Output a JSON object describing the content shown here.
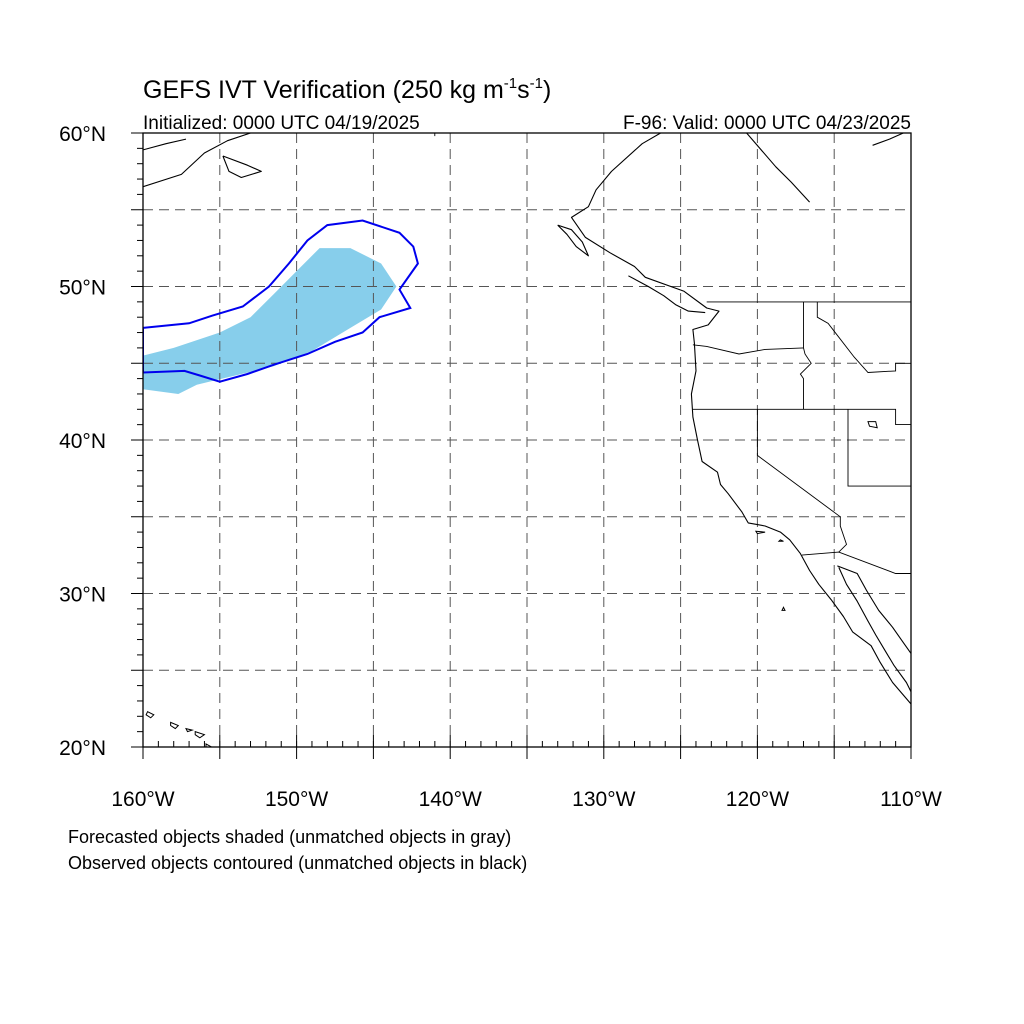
{
  "header": {
    "title_main": "GEFS IVT Verification (250 kg m",
    "title_sup1": "-1",
    "title_mid": "s",
    "title_sup2": "-1",
    "title_end": ")",
    "initialized": "Initialized: 0000 UTC 04/19/2025",
    "valid": "F-96: Valid: 0000 UTC 04/23/2025"
  },
  "map": {
    "lon_range": [
      -160,
      -110
    ],
    "lat_range": [
      20,
      60
    ],
    "y_tick_labels": [
      {
        "lat": 60,
        "label": "60°N"
      },
      {
        "lat": 50,
        "label": "50°N"
      },
      {
        "lat": 40,
        "label": "40°N"
      },
      {
        "lat": 30,
        "label": "30°N"
      },
      {
        "lat": 20,
        "label": "20°N"
      }
    ],
    "x_tick_labels": [
      {
        "lon": -160,
        "label": "160°W"
      },
      {
        "lon": -150,
        "label": "150°W"
      },
      {
        "lon": -140,
        "label": "140°W"
      },
      {
        "lon": -130,
        "label": "130°W"
      },
      {
        "lon": -120,
        "label": "120°W"
      },
      {
        "lon": -110,
        "label": "110°W"
      }
    ],
    "grid_interval_deg": 5,
    "grid_style": "dashed",
    "colors": {
      "forecast_fill": "#87ceeb",
      "observed_contour": "#0000ee",
      "coastline": "#000000",
      "grid": "#555555"
    },
    "forecast_object": [
      [
        -160,
        45.5
      ],
      [
        -158,
        46
      ],
      [
        -155,
        47
      ],
      [
        -153,
        48
      ],
      [
        -151.5,
        49.5
      ],
      [
        -150,
        51
      ],
      [
        -148.5,
        52.5
      ],
      [
        -146.5,
        52.5
      ],
      [
        -144.5,
        51.5
      ],
      [
        -143.5,
        50
      ],
      [
        -144.5,
        48.5
      ],
      [
        -146.5,
        47.3
      ],
      [
        -149,
        45.8
      ],
      [
        -151.5,
        44.8
      ],
      [
        -154,
        44.2
      ],
      [
        -156.5,
        43.6
      ],
      [
        -157.7,
        43
      ],
      [
        -160,
        43.3
      ]
    ],
    "observed_object": [
      [
        -160,
        47.3
      ],
      [
        -157,
        47.6
      ],
      [
        -155.5,
        48.1
      ],
      [
        -153.5,
        48.7
      ],
      [
        -151.8,
        50
      ],
      [
        -150.5,
        51.5
      ],
      [
        -149.3,
        53
      ],
      [
        -148,
        54
      ],
      [
        -145.7,
        54.3
      ],
      [
        -143.3,
        53.5
      ],
      [
        -142.4,
        52.6
      ],
      [
        -142.1,
        51.5
      ],
      [
        -143.3,
        49.8
      ],
      [
        -142.6,
        48.6
      ],
      [
        -144.6,
        48
      ],
      [
        -145.7,
        47
      ],
      [
        -147.5,
        46.4
      ],
      [
        -149.3,
        45.6
      ],
      [
        -151.5,
        44.9
      ],
      [
        -153.2,
        44.3
      ],
      [
        -155,
        43.8
      ],
      [
        -156.3,
        44.2
      ],
      [
        -157.3,
        44.5
      ],
      [
        -160,
        44.4
      ]
    ],
    "coastlines": [
      [
        [
          -126.3,
          60
        ],
        [
          -127.5,
          59.3
        ],
        [
          -129.5,
          57.5
        ],
        [
          -130.5,
          56.3
        ],
        [
          -131,
          55.2
        ],
        [
          -132.1,
          54.5
        ],
        [
          -131.2,
          53.2
        ],
        [
          -129.6,
          52.2
        ],
        [
          -128,
          51.3
        ],
        [
          -127.3,
          50.6
        ],
        [
          -124.8,
          49.7
        ],
        [
          -123.3,
          48.6
        ],
        [
          -122.5,
          48.4
        ],
        [
          -123.2,
          47.5
        ],
        [
          -124.2,
          47.2
        ],
        [
          -124.1,
          46.3
        ],
        [
          -124,
          44.5
        ],
        [
          -124.3,
          43
        ],
        [
          -124.2,
          41.5
        ],
        [
          -123.9,
          40
        ],
        [
          -123.6,
          38.6
        ],
        [
          -122.6,
          37.9
        ],
        [
          -122.4,
          37.1
        ],
        [
          -121.9,
          36.5
        ],
        [
          -121,
          35.3
        ],
        [
          -120.6,
          34.6
        ],
        [
          -119.5,
          34.4
        ],
        [
          -118.5,
          34
        ],
        [
          -117.9,
          33.5
        ],
        [
          -117.2,
          32.6
        ],
        [
          -116.6,
          31.5
        ],
        [
          -116,
          30.6
        ],
        [
          -115.2,
          29.6
        ],
        [
          -114.4,
          28.5
        ],
        [
          -113.8,
          27.5
        ],
        [
          -112.6,
          26.6
        ],
        [
          -112,
          25.5
        ],
        [
          -111.2,
          24.2
        ],
        [
          -110,
          22.8
        ]
      ],
      [
        [
          -114.7,
          31.7
        ],
        [
          -114.2,
          30.6
        ],
        [
          -113.5,
          29.5
        ],
        [
          -112.8,
          28.2
        ],
        [
          -112.3,
          27.3
        ],
        [
          -111.7,
          26.3
        ],
        [
          -111.1,
          25.3
        ],
        [
          -110.3,
          24.2
        ],
        [
          -110,
          23.6
        ]
      ],
      [
        [
          -114.8,
          31.8
        ],
        [
          -113.5,
          31.3
        ],
        [
          -112.9,
          30.2
        ],
        [
          -112.1,
          28.9
        ],
        [
          -111.2,
          27.8
        ],
        [
          -110.5,
          26.8
        ],
        [
          -110,
          26.1
        ]
      ],
      [
        [
          -128.4,
          50.7
        ],
        [
          -127.1,
          50
        ],
        [
          -126.1,
          49.4
        ],
        [
          -125.3,
          48.8
        ],
        [
          -124.5,
          48.4
        ],
        [
          -123.4,
          48.3
        ]
      ],
      [
        [
          -133,
          54
        ],
        [
          -132.4,
          53.4
        ],
        [
          -131.8,
          52.6
        ],
        [
          -131,
          52
        ],
        [
          -131.4,
          52.9
        ],
        [
          -132.1,
          53.7
        ],
        [
          -133,
          54
        ]
      ],
      [
        [
          -160,
          56.5
        ],
        [
          -157.5,
          57.3
        ],
        [
          -156,
          58.7
        ],
        [
          -154.5,
          59.5
        ],
        [
          -153,
          60
        ]
      ],
      [
        [
          -160,
          58.9
        ],
        [
          -158.5,
          59.3
        ],
        [
          -157.2,
          59.6
        ]
      ],
      [
        [
          -154.8,
          58.5
        ],
        [
          -153.2,
          57.9
        ],
        [
          -152.3,
          57.5
        ],
        [
          -153.6,
          57.1
        ],
        [
          -154.4,
          57.5
        ],
        [
          -154.8,
          58.5
        ]
      ],
      [
        [
          -120.7,
          60
        ],
        [
          -118.8,
          57.8
        ],
        [
          -117.8,
          56.8
        ],
        [
          -116.6,
          55.5
        ]
      ],
      [
        [
          -112.5,
          59.2
        ],
        [
          -111.4,
          59.6
        ],
        [
          -110.5,
          60
        ]
      ]
    ],
    "islands": [
      [
        [
          -159.7,
          22.3
        ],
        [
          -159.3,
          22.1
        ],
        [
          -159.5,
          21.9
        ],
        [
          -159.8,
          22.1
        ],
        [
          -159.7,
          22.3
        ]
      ],
      [
        [
          -158.2,
          21.6
        ],
        [
          -157.7,
          21.4
        ],
        [
          -157.9,
          21.2
        ],
        [
          -158.2,
          21.4
        ],
        [
          -158.2,
          21.6
        ]
      ],
      [
        [
          -157.2,
          21.2
        ],
        [
          -156.8,
          21.1
        ],
        [
          -157.1,
          21.0
        ],
        [
          -157.2,
          21.2
        ]
      ],
      [
        [
          -156.6,
          21.0
        ],
        [
          -156,
          20.8
        ],
        [
          -156.3,
          20.6
        ],
        [
          -156.6,
          20.8
        ],
        [
          -156.6,
          21.0
        ]
      ],
      [
        [
          -155.9,
          20.2
        ],
        [
          -155,
          19.7
        ],
        [
          -155.5,
          19.5
        ],
        [
          -155.9,
          19.9
        ],
        [
          -155.9,
          20.2
        ]
      ],
      [
        [
          -118.5,
          33.5
        ],
        [
          -118.3,
          33.4
        ],
        [
          -118.6,
          33.4
        ],
        [
          -118.5,
          33.5
        ]
      ],
      [
        [
          -120.1,
          34.05
        ],
        [
          -119.5,
          34.0
        ],
        [
          -120.0,
          33.9
        ],
        [
          -120.1,
          34.05
        ]
      ],
      [
        [
          -118.3,
          29.1
        ],
        [
          -118.2,
          28.9
        ],
        [
          -118.4,
          28.9
        ],
        [
          -118.3,
          29.1
        ]
      ],
      [
        [
          -112.8,
          41.2
        ],
        [
          -112.3,
          41.2
        ],
        [
          -112.2,
          40.8
        ],
        [
          -112.7,
          40.9
        ],
        [
          -112.8,
          41.2
        ]
      ]
    ],
    "borders": [
      [
        [
          -123.3,
          49
        ],
        [
          -110,
          49
        ]
      ],
      [
        [
          -141,
          60
        ],
        [
          -141,
          59.8
        ]
      ],
      [
        [
          -124.2,
          42
        ],
        [
          -111,
          42
        ],
        [
          -111,
          41
        ],
        [
          -110,
          41
        ]
      ],
      [
        [
          -120,
          42
        ],
        [
          -120,
          39
        ],
        [
          -114.6,
          35
        ]
      ],
      [
        [
          -117,
          49
        ],
        [
          -117,
          46
        ],
        [
          -116.9,
          45.6
        ],
        [
          -116.5,
          45
        ],
        [
          -117.2,
          44.3
        ],
        [
          -117,
          44
        ],
        [
          -117,
          42
        ]
      ],
      [
        [
          -116.1,
          49
        ],
        [
          -116.1,
          48
        ],
        [
          -115.4,
          47.6
        ],
        [
          -114.7,
          46.7
        ],
        [
          -113.7,
          45.4
        ],
        [
          -112.8,
          44.4
        ],
        [
          -111,
          44.5
        ],
        [
          -111,
          45
        ],
        [
          -110,
          45
        ]
      ],
      [
        [
          -124.2,
          46.2
        ],
        [
          -123.3,
          46.1
        ],
        [
          -121.2,
          45.6
        ],
        [
          -119.5,
          45.9
        ],
        [
          -117,
          46
        ]
      ],
      [
        [
          -114.1,
          42
        ],
        [
          -114.1,
          37
        ],
        [
          -110,
          37
        ]
      ],
      [
        [
          -114.6,
          35
        ],
        [
          -114.6,
          34.4
        ],
        [
          -114.2,
          33.2
        ],
        [
          -114.7,
          32.7
        ]
      ],
      [
        [
          -117.1,
          32.5
        ],
        [
          -114.7,
          32.7
        ],
        [
          -111,
          31.3
        ],
        [
          -110,
          31.3
        ]
      ]
    ]
  },
  "footnotes": {
    "line1": "Forecasted objects shaded (unmatched objects in gray)",
    "line2": "Observed objects contoured (unmatched objects in black)"
  }
}
